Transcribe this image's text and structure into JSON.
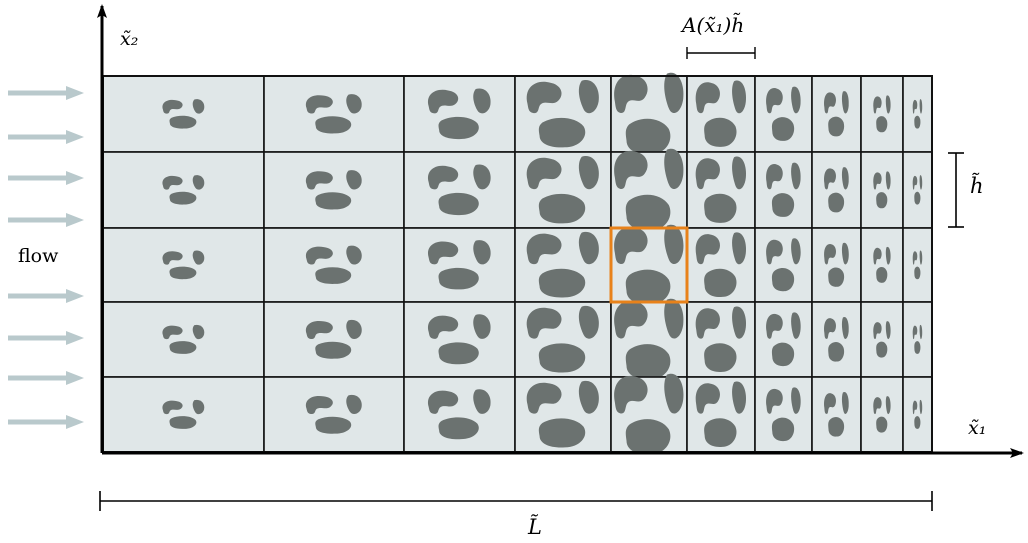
{
  "labels": {
    "flow": "flow",
    "x2_axis": "x̃₂",
    "x1_axis": "x̃₁",
    "domain_length": "L̃",
    "cell_height": "h̃",
    "cell_width": "A(x̃₁)h̃"
  },
  "grid": {
    "rows": 5,
    "columns": 10,
    "highlighted_cell": {
      "row": 2,
      "column": 4
    }
  },
  "colors": {
    "cell_fill": "#e0e7e8",
    "grid_line": "#111111",
    "inclusion": "#6b7270",
    "highlight": "#e8821a",
    "flow_arrow": "#b9c9cc",
    "axis": "#000000"
  },
  "icons": {
    "flow_arrow": "flow-arrow-icon",
    "inclusion": "inclusion-blob-icon"
  }
}
